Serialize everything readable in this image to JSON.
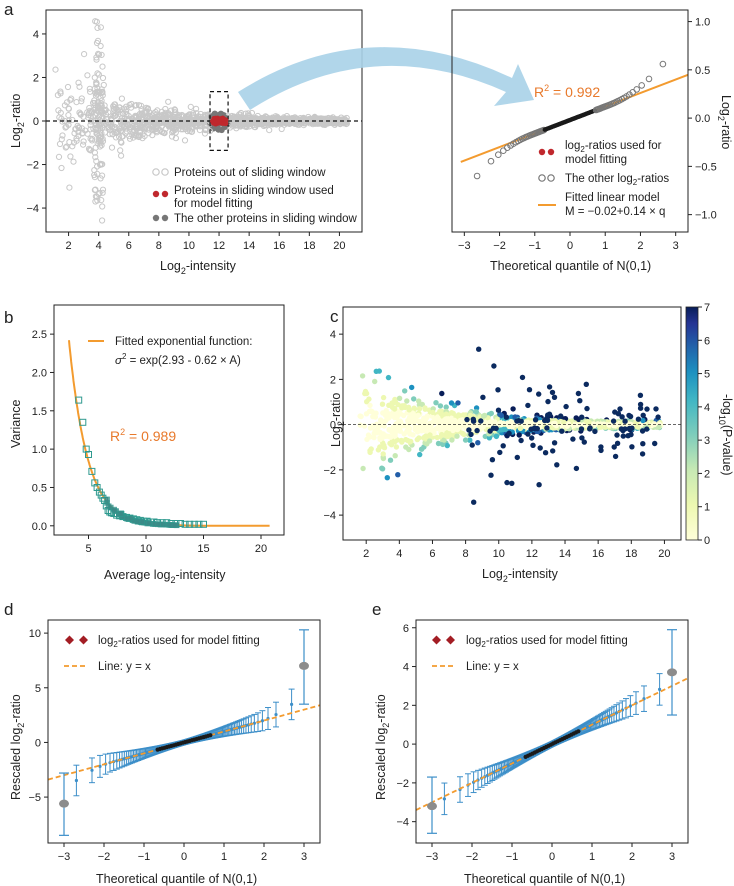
{
  "figure": {
    "panels": [
      "a",
      "b",
      "c",
      "d",
      "e"
    ]
  },
  "colors": {
    "orange": "#f39b2f",
    "orange_text": "#e8792b",
    "red": "#c0282d",
    "darkred": "#a31d24",
    "grey_light": "#c8c8c8",
    "grey_dark": "#777777",
    "teal": "#2f9a8f",
    "blue": "#3d8fc9",
    "arrow": "#a9d2e8",
    "navy": "#0b2a5f"
  },
  "chart_data": [
    {
      "id": "a_left",
      "type": "scatter",
      "xlabel": "Log2-intensity",
      "xlabel_main": "Log",
      "xlabel_sub": "2",
      "xlabel_rest": "-intensity",
      "ylabel_main": "Log",
      "ylabel_sub": "2",
      "ylabel_rest": "-ratio",
      "xlim": [
        0.5,
        21.5
      ],
      "ylim": [
        -5.1,
        5.1
      ],
      "xticks": [
        2,
        4,
        6,
        8,
        10,
        12,
        14,
        16,
        18,
        20
      ],
      "yticks": [
        -4,
        -2,
        0,
        2,
        4
      ],
      "hline": 0,
      "sliding_window": [
        11.4,
        12.6
      ],
      "legend": [
        "Proteins out of sliding window",
        "Proteins in sliding window used",
        "for model fitting",
        "The other proteins in sliding window"
      ]
    },
    {
      "id": "a_right",
      "type": "scatter",
      "title": "",
      "xlabel": "Theoretical quantile of N(0,1)",
      "ylabel_main": "Log",
      "ylabel_sub": "2",
      "ylabel_rest": "-ratio",
      "xlim": [
        -3.35,
        3.35
      ],
      "ylim": [
        -1.18,
        1.12
      ],
      "xticks": [
        -3,
        -2,
        -1,
        0,
        1,
        2,
        3
      ],
      "yticks": [
        -1.0,
        -0.5,
        0.0,
        0.5,
        1.0
      ],
      "ytick_labels": [
        "-1.0",
        "-0.5",
        "0.0",
        "0.5",
        "1.0"
      ],
      "fit": {
        "intercept": -0.02,
        "slope": 0.14
      },
      "r2_main": "R",
      "r2_sup": "2",
      "r2_rest": " = 0.992",
      "legend": [
        "log2-ratios used for",
        "model fitting",
        "The other log2-ratios",
        "Fitted linear model",
        "M = −0.02+0.14 × q"
      ],
      "legend_log": "log",
      "legend_sub": "2",
      "legend_1_rest": "-ratios used for",
      "legend_2": "model fitting",
      "legend_3_pre": "The other log",
      "legend_3_rest": "-ratios",
      "legend_4": "Fitted linear model",
      "legend_5": "M = −0.02+0.14 × q"
    },
    {
      "id": "b",
      "type": "scatter",
      "xlabel_main": "Average log",
      "xlabel_sub": "2",
      "xlabel_rest": "-intensity",
      "ylabel": "Variance",
      "xlim": [
        2.0,
        22.0
      ],
      "ylim": [
        -0.12,
        2.88
      ],
      "xticks": [
        5,
        10,
        15,
        20
      ],
      "yticks": [
        0.0,
        0.5,
        1.0,
        1.5,
        2.0,
        2.5
      ],
      "ytick_labels": [
        "0.0",
        "0.5",
        "1.0",
        "1.5",
        "2.0",
        "2.5"
      ],
      "fit": {
        "a": 2.93,
        "b": 0.62
      },
      "curve_range": [
        3.3,
        20.8
      ],
      "points_x": [
        4.15,
        4.5,
        4.8,
        5.0,
        5.3,
        5.55,
        5.75,
        5.95,
        6.1,
        6.25,
        6.4,
        6.55,
        6.7,
        6.85,
        7.0,
        7.2,
        7.45,
        7.7,
        8.0,
        8.3,
        8.6,
        8.9,
        9.2,
        9.5,
        9.8,
        10.1,
        10.4,
        10.7,
        11.0,
        11.4,
        11.8,
        12.2,
        12.6,
        13.0,
        13.4,
        13.8,
        14.2,
        14.6,
        15.0
      ],
      "points_y": [
        1.64,
        1.35,
        1.0,
        0.93,
        0.71,
        0.56,
        0.5,
        0.44,
        0.4,
        0.36,
        0.33,
        0.26,
        0.2,
        0.18,
        0.17,
        0.16,
        0.14,
        0.13,
        0.12,
        0.11,
        0.1,
        0.09,
        0.08,
        0.07,
        0.06,
        0.06,
        0.05,
        0.05,
        0.04,
        0.04,
        0.04,
        0.03,
        0.03,
        0.03,
        0.02,
        0.02,
        0.02,
        0.02,
        0.02
      ],
      "legend_1": "Fitted exponential function:",
      "legend_2_sigma": "σ",
      "legend_2_sup": "2",
      "legend_2_rest": " = exp(2.93 - 0.62 × A)",
      "r2_main": "R",
      "r2_sup": "2",
      "r2_rest": " = 0.989"
    },
    {
      "id": "c",
      "type": "scatter",
      "xlabel_main": "Log",
      "xlabel_sub": "2",
      "xlabel_rest": "-intensity",
      "ylabel_main": "Log",
      "ylabel_sub": "2",
      "ylabel_rest": "-ratio",
      "xlim": [
        0.6,
        21.0
      ],
      "ylim": [
        -5.1,
        5.2
      ],
      "xticks": [
        2,
        4,
        6,
        8,
        10,
        12,
        14,
        16,
        18,
        20
      ],
      "yticks": [
        -4,
        -2,
        0,
        2,
        4
      ],
      "colorbar": {
        "label_pre": "-log",
        "label_sub": "10",
        "label_rest": "(P-value)",
        "ticks": [
          0,
          1,
          2,
          3,
          4,
          5,
          6,
          7
        ],
        "range": [
          0,
          7
        ]
      }
    },
    {
      "id": "d",
      "type": "scatter",
      "xlabel": "Theoretical quantile of N(0,1)",
      "ylabel_main": "Rescaled log",
      "ylabel_sub": "2",
      "ylabel_rest": "-ratio",
      "xlim": [
        -3.4,
        3.4
      ],
      "ylim": [
        -9.2,
        11.2
      ],
      "xticks": [
        -3,
        -2,
        -1,
        0,
        1,
        2,
        3
      ],
      "yticks": [
        -5,
        0,
        5,
        10
      ],
      "legend_1_log": "log",
      "legend_1_sub": "2",
      "legend_1_rest": "-ratios used for model fitting",
      "legend_2": "Line: y = x",
      "tail_low": {
        "x": -3.0,
        "y": -5.6,
        "err_lo": -8.5,
        "err_hi": -2.8
      },
      "tail_high": {
        "x": 3.0,
        "y": 7.0,
        "err_lo": 3.5,
        "err_hi": 10.3
      }
    },
    {
      "id": "e",
      "type": "scatter",
      "xlabel": "Theoretical quantile of N(0,1)",
      "ylabel_main": "Rescaled log",
      "ylabel_sub": "2",
      "ylabel_rest": "-ratio",
      "xlim": [
        -3.4,
        3.4
      ],
      "ylim": [
        -5.1,
        6.4
      ],
      "xticks": [
        -3,
        -2,
        -1,
        0,
        1,
        2,
        3
      ],
      "yticks": [
        -4,
        -2,
        0,
        2,
        4,
        6
      ],
      "legend_1_log": "log",
      "legend_1_sub": "2",
      "legend_1_rest": "-ratios used for model fitting",
      "legend_2": "Line: y = x",
      "tail_low": {
        "x": -3.0,
        "y": -3.2,
        "err_lo": -4.6,
        "err_hi": -1.7
      },
      "tail_high": {
        "x": 3.0,
        "y": 3.7,
        "err_lo": 1.5,
        "err_hi": 5.9
      }
    }
  ]
}
